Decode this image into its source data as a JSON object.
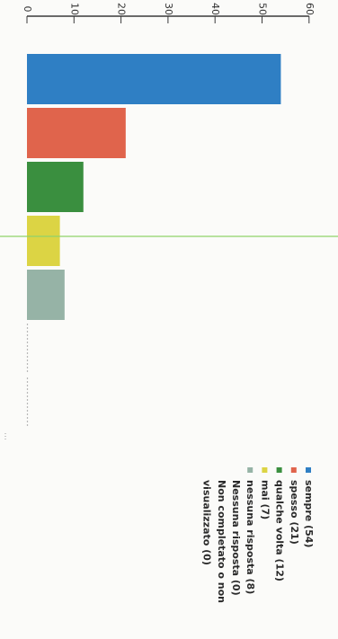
{
  "chart_data": {
    "type": "bar",
    "orientation": "horizontal",
    "categories": [
      "sempre",
      "spesso",
      "qualche volta",
      "mai",
      "nessuna risposta",
      "Nessuna risposta",
      "Non completato o non visualizzato"
    ],
    "values": [
      54,
      21,
      12,
      7,
      8,
      0,
      0
    ],
    "colors": [
      "#2f7fc4",
      "#e0644c",
      "#3a8f3f",
      "#dcd444",
      "#96b3a6",
      "#9aa39e",
      "#c8c8c8"
    ],
    "xlim": [
      0,
      60
    ],
    "ticks": [
      "0",
      "10",
      "20",
      "30",
      "40",
      "50",
      "60"
    ],
    "tick_values": [
      0,
      10,
      20,
      30,
      40,
      50,
      60
    ],
    "legend": [
      "sempre (54)",
      "spesso (21)",
      "qualche volta (12)",
      "mai (7)",
      "nessuna risposta (8)",
      "Nessuna risposta (0)",
      "Non completato o non",
      "visualizzato (0)"
    ],
    "legend_placement": "right",
    "reference_line_color": "#8fd26a",
    "grid": false,
    "title": "",
    "xlabel": "",
    "ylabel": ""
  }
}
